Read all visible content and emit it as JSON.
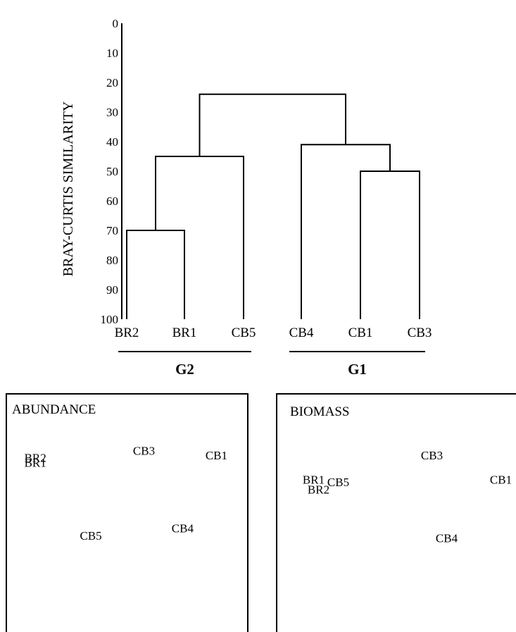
{
  "chart_data": [
    {
      "type": "dendrogram",
      "ylabel": "BRAY-CURTIS SIMILARITY",
      "yticks": [
        0,
        10,
        20,
        30,
        40,
        50,
        60,
        70,
        80,
        90,
        100
      ],
      "ylim": [
        0,
        100
      ],
      "leaves": [
        "BR2",
        "BR1",
        "CB5",
        "CB4",
        "CB1",
        "CB3"
      ],
      "merges": [
        {
          "left": "BR2",
          "right": "BR1",
          "similarity": 70
        },
        {
          "left": "BR2+BR1",
          "right": "CB5",
          "similarity": 45
        },
        {
          "left": "CB1",
          "right": "CB3",
          "similarity": 50
        },
        {
          "left": "CB4",
          "right": "CB1+CB3",
          "similarity": 41
        },
        {
          "left": "G2",
          "right": "G1",
          "similarity": 24
        }
      ],
      "groups": [
        {
          "label": "G2",
          "members": [
            "BR2",
            "BR1",
            "CB5"
          ]
        },
        {
          "label": "G1",
          "members": [
            "CB4",
            "CB1",
            "CB3"
          ]
        }
      ]
    },
    {
      "type": "scatter",
      "title": "ABUNDANCE",
      "axes": "none",
      "points": [
        {
          "label": "BR2",
          "x": 0.12,
          "y": 0.72
        },
        {
          "label": "BR1",
          "x": 0.12,
          "y": 0.7
        },
        {
          "label": "CB3",
          "x": 0.57,
          "y": 0.75
        },
        {
          "label": "CB1",
          "x": 0.87,
          "y": 0.73
        },
        {
          "label": "CB5",
          "x": 0.35,
          "y": 0.4
        },
        {
          "label": "CB4",
          "x": 0.73,
          "y": 0.43
        }
      ]
    },
    {
      "type": "scatter",
      "title": "BIOMASS",
      "axes": "none",
      "points": [
        {
          "label": "BR1",
          "x": 0.15,
          "y": 0.63
        },
        {
          "label": "CB5",
          "x": 0.25,
          "y": 0.62
        },
        {
          "label": "BR2",
          "x": 0.17,
          "y": 0.59
        },
        {
          "label": "CB3",
          "x": 0.63,
          "y": 0.73
        },
        {
          "label": "CB1",
          "x": 0.91,
          "y": 0.63
        },
        {
          "label": "CB4",
          "x": 0.69,
          "y": 0.39
        }
      ]
    }
  ]
}
